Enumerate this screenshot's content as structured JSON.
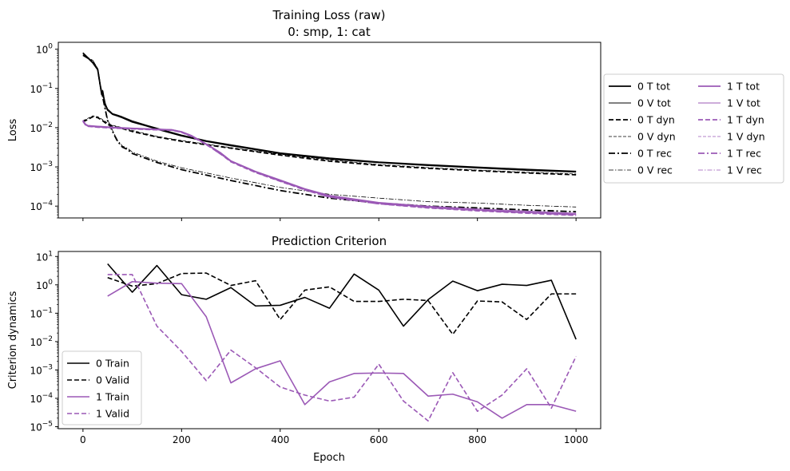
{
  "colors": {
    "black": "#000000",
    "purple": "#9b59b6"
  },
  "chart_data": [
    {
      "type": "line",
      "title": "Training Loss (raw)",
      "subtitle": "0: smp, 1: cat",
      "xlabel": "",
      "ylabel": "Loss",
      "yscale": "log",
      "xlim": [
        -50,
        1050
      ],
      "ylim": [
        5e-05,
        1.5
      ],
      "x_ticks": [
        0,
        200,
        400,
        600,
        800,
        1000
      ],
      "x_tick_labels_shown": false,
      "y_ticks": [
        {
          "value": 0.0001,
          "base": "10",
          "exp": "−4"
        },
        {
          "value": 0.001,
          "base": "10",
          "exp": "−3"
        },
        {
          "value": 0.01,
          "base": "10",
          "exp": "−2"
        },
        {
          "value": 0.1,
          "base": "10",
          "exp": "−1"
        },
        {
          "value": 1,
          "base": "10",
          "exp": "0"
        }
      ],
      "legend_placement": "outside-right",
      "series": [
        {
          "name": "0 T tot",
          "color": "#000000",
          "style": "solid",
          "width": 1.8,
          "x": [
            0,
            10,
            20,
            30,
            35,
            38,
            40,
            42,
            45,
            50,
            60,
            70,
            80,
            100,
            130,
            160,
            200,
            250,
            300,
            400,
            500,
            600,
            700,
            800,
            900,
            1000
          ],
          "y": [
            0.8,
            0.6,
            0.45,
            0.3,
            0.12,
            0.07,
            0.085,
            0.06,
            0.04,
            0.028,
            0.022,
            0.02,
            0.018,
            0.014,
            0.011,
            0.0085,
            0.0062,
            0.0045,
            0.0035,
            0.0022,
            0.0016,
            0.0013,
            0.0011,
            0.00095,
            0.00083,
            0.00075
          ]
        },
        {
          "name": "0 V tot",
          "color": "#000000",
          "style": "solid",
          "width": 0.9,
          "x": [
            0,
            10,
            20,
            30,
            35,
            38,
            40,
            42,
            45,
            50,
            60,
            70,
            80,
            100,
            130,
            160,
            200,
            250,
            300,
            400,
            500,
            600,
            700,
            800,
            900,
            1000
          ],
          "y": [
            0.82,
            0.62,
            0.47,
            0.32,
            0.13,
            0.075,
            0.09,
            0.065,
            0.042,
            0.03,
            0.023,
            0.021,
            0.019,
            0.015,
            0.0115,
            0.009,
            0.0065,
            0.0047,
            0.0037,
            0.0023,
            0.0017,
            0.00135,
            0.00115,
            0.001,
            0.00088,
            0.00078
          ]
        },
        {
          "name": "0 T dyn",
          "color": "#000000",
          "style": "dashed",
          "width": 1.8,
          "x": [
            0,
            20,
            30,
            40,
            50,
            60,
            80,
            100,
            150,
            200,
            300,
            400,
            500,
            600,
            700,
            800,
            900,
            1000
          ],
          "y": [
            0.014,
            0.019,
            0.018,
            0.015,
            0.012,
            0.011,
            0.0095,
            0.008,
            0.0058,
            0.0045,
            0.003,
            0.002,
            0.0014,
            0.0011,
            0.00092,
            0.0008,
            0.0007,
            0.00063
          ]
        },
        {
          "name": "0 V dyn",
          "color": "#000000",
          "style": "dashed",
          "width": 0.8,
          "x": [
            0,
            20,
            30,
            40,
            50,
            60,
            80,
            100,
            150,
            200,
            300,
            400,
            500,
            600,
            700,
            800,
            900,
            1000
          ],
          "y": [
            0.015,
            0.02,
            0.019,
            0.016,
            0.013,
            0.0115,
            0.01,
            0.0085,
            0.006,
            0.0047,
            0.0031,
            0.0021,
            0.0015,
            0.00115,
            0.00096,
            0.00083,
            0.00073,
            0.00066
          ]
        },
        {
          "name": "0 T rec",
          "color": "#000000",
          "style": "dashdot",
          "width": 1.8,
          "x": [
            0,
            20,
            30,
            35,
            40,
            45,
            50,
            60,
            70,
            80,
            90,
            100,
            150,
            200,
            300,
            400,
            500,
            600,
            700,
            800,
            900,
            1000
          ],
          "y": [
            0.7,
            0.5,
            0.3,
            0.12,
            0.06,
            0.03,
            0.015,
            0.008,
            0.0045,
            0.0032,
            0.0028,
            0.0022,
            0.0013,
            0.00085,
            0.00045,
            0.00025,
            0.00016,
            0.00012,
            0.0001,
            9e-05,
            8e-05,
            7.2e-05
          ]
        },
        {
          "name": "0 V rec",
          "color": "#000000",
          "style": "dashdot",
          "width": 0.8,
          "x": [
            0,
            20,
            30,
            35,
            40,
            45,
            50,
            60,
            70,
            80,
            90,
            100,
            150,
            200,
            300,
            400,
            500,
            600,
            700,
            800,
            900,
            1000
          ],
          "y": [
            0.72,
            0.52,
            0.32,
            0.13,
            0.065,
            0.032,
            0.016,
            0.0085,
            0.0048,
            0.0034,
            0.003,
            0.0024,
            0.0014,
            0.00095,
            0.00052,
            0.0003,
            0.0002,
            0.00016,
            0.00013,
            0.00012,
            0.000105,
            9.5e-05
          ]
        },
        {
          "name": "1 T tot",
          "color": "#9b59b6",
          "style": "solid",
          "width": 1.8,
          "x": [
            0,
            5,
            10,
            30,
            60,
            100,
            150,
            180,
            200,
            220,
            240,
            260,
            280,
            300,
            350,
            400,
            450,
            500,
            600,
            700,
            800,
            900,
            1000
          ],
          "y": [
            0.015,
            0.012,
            0.011,
            0.0105,
            0.01,
            0.0095,
            0.009,
            0.0088,
            0.0078,
            0.0062,
            0.0045,
            0.0032,
            0.0022,
            0.0014,
            0.00075,
            0.00045,
            0.00027,
            0.00018,
            0.00012,
            9.5e-05,
            8e-05,
            7e-05,
            6.2e-05
          ]
        },
        {
          "name": "1 V tot",
          "color": "#9b59b6",
          "style": "solid",
          "width": 0.9,
          "x": [
            0,
            5,
            10,
            30,
            60,
            100,
            150,
            180,
            200,
            220,
            240,
            260,
            280,
            300,
            350,
            400,
            450,
            500,
            600,
            700,
            800,
            900,
            1000
          ],
          "y": [
            0.0155,
            0.0125,
            0.0115,
            0.011,
            0.0104,
            0.0098,
            0.0093,
            0.009,
            0.008,
            0.0064,
            0.0046,
            0.0033,
            0.0023,
            0.00145,
            0.00078,
            0.00047,
            0.00028,
            0.00019,
            0.000125,
            0.0001,
            8.5e-05,
            7.5e-05,
            6.6e-05
          ]
        },
        {
          "name": "1 T dyn",
          "color": "#9b59b6",
          "style": "dashed",
          "width": 1.8,
          "x": [
            0,
            5,
            10,
            30,
            60,
            100,
            150,
            180,
            200,
            220,
            240,
            260,
            280,
            300,
            350,
            400,
            450,
            500,
            600,
            700,
            800,
            900,
            1000
          ],
          "y": [
            0.0145,
            0.0118,
            0.0108,
            0.0103,
            0.0098,
            0.0093,
            0.0088,
            0.0086,
            0.0076,
            0.006,
            0.0044,
            0.0031,
            0.0021,
            0.00135,
            0.00072,
            0.00043,
            0.00026,
            0.00017,
            0.000115,
            9e-05,
            7.6e-05,
            6.6e-05,
            5.8e-05
          ]
        },
        {
          "name": "1 V dyn",
          "color": "#9b59b6",
          "style": "dashed",
          "width": 0.8,
          "x": [
            0,
            5,
            10,
            30,
            60,
            100,
            150,
            180,
            200,
            220,
            240,
            260,
            280,
            300,
            350,
            400,
            450,
            500,
            600,
            700,
            800,
            900,
            1000
          ],
          "y": [
            0.015,
            0.0122,
            0.0112,
            0.0106,
            0.0101,
            0.0096,
            0.0091,
            0.0089,
            0.0079,
            0.0063,
            0.0046,
            0.0032,
            0.0022,
            0.0014,
            0.00074,
            0.00044,
            0.000265,
            0.000175,
            0.00012,
            9.3e-05,
            7.9e-05,
            6.9e-05,
            6.1e-05
          ]
        },
        {
          "name": "1 T rec",
          "color": "#9b59b6",
          "style": "dashdot",
          "width": 1.8,
          "x": [
            0,
            5,
            10,
            30,
            60,
            100,
            150,
            180,
            200,
            220,
            240,
            260,
            280,
            300,
            350,
            400,
            450,
            500,
            600,
            700,
            800,
            900,
            1000
          ],
          "y": [
            0.0152,
            0.0121,
            0.0111,
            0.0106,
            0.01,
            0.0095,
            0.009,
            0.0087,
            0.0077,
            0.0061,
            0.0045,
            0.0031,
            0.0021,
            0.0014,
            0.00073,
            0.00044,
            0.00026,
            0.00017,
            0.000115,
            9.2e-05,
            7.8e-05,
            6.8e-05,
            6e-05
          ]
        },
        {
          "name": "1 V rec",
          "color": "#9b59b6",
          "style": "dashdot",
          "width": 0.8,
          "x": [
            0,
            5,
            10,
            30,
            60,
            100,
            150,
            180,
            200,
            220,
            240,
            260,
            280,
            300,
            350,
            400,
            450,
            500,
            600,
            700,
            800,
            900,
            1000
          ],
          "y": [
            0.0156,
            0.0124,
            0.0114,
            0.0108,
            0.0103,
            0.0097,
            0.0092,
            0.0089,
            0.0079,
            0.0063,
            0.0046,
            0.0032,
            0.0022,
            0.00143,
            0.00076,
            0.00046,
            0.00027,
            0.00018,
            0.00012,
            9.6e-05,
            8.1e-05,
            7.1e-05,
            6.3e-05
          ]
        }
      ]
    },
    {
      "type": "line",
      "title": "Prediction Criterion",
      "xlabel": "Epoch",
      "ylabel": "Criterion dynamics",
      "yscale": "log",
      "xlim": [
        -50,
        1050
      ],
      "ylim": [
        8.5e-06,
        15
      ],
      "x_ticks": [
        0,
        200,
        400,
        600,
        800,
        1000
      ],
      "x_tick_labels": [
        "0",
        "200",
        "400",
        "600",
        "800",
        "1000"
      ],
      "y_ticks": [
        {
          "value": 1e-05,
          "base": "10",
          "exp": "−5"
        },
        {
          "value": 0.0001,
          "base": "10",
          "exp": "−4"
        },
        {
          "value": 0.001,
          "base": "10",
          "exp": "−3"
        },
        {
          "value": 0.01,
          "base": "10",
          "exp": "−2"
        },
        {
          "value": 0.1,
          "base": "10",
          "exp": "−1"
        },
        {
          "value": 1,
          "base": "10",
          "exp": "0"
        },
        {
          "value": 10,
          "base": "10",
          "exp": "1"
        }
      ],
      "legend_placement": "lower-left",
      "series": [
        {
          "name": "0 Train",
          "color": "#000000",
          "style": "solid",
          "width": 1.6,
          "x": [
            50,
            100,
            150,
            200,
            250,
            300,
            350,
            400,
            450,
            500,
            550,
            600,
            650,
            700,
            750,
            800,
            850,
            900,
            950,
            1000
          ],
          "y": [
            5.5,
            0.55,
            4.8,
            0.45,
            0.31,
            0.8,
            0.18,
            0.19,
            0.36,
            0.15,
            2.4,
            0.65,
            0.035,
            0.3,
            1.35,
            0.62,
            1.05,
            0.95,
            1.45,
            0.012
          ]
        },
        {
          "name": "0 Valid",
          "color": "#000000",
          "style": "dashed",
          "width": 1.6,
          "x": [
            50,
            100,
            150,
            200,
            250,
            300,
            350,
            400,
            450,
            500,
            550,
            600,
            650,
            700,
            750,
            800,
            850,
            900,
            950,
            1000
          ],
          "y": [
            1.8,
            0.9,
            1.1,
            2.5,
            2.6,
            0.95,
            1.4,
            0.06,
            0.65,
            0.85,
            0.26,
            0.26,
            0.31,
            0.28,
            0.018,
            0.27,
            0.25,
            0.06,
            0.48,
            0.48
          ]
        },
        {
          "name": "1 Train",
          "color": "#9b59b6",
          "style": "solid",
          "width": 1.6,
          "x": [
            50,
            100,
            150,
            200,
            250,
            300,
            350,
            400,
            450,
            500,
            550,
            600,
            650,
            700,
            750,
            800,
            850,
            900,
            950,
            1000
          ],
          "y": [
            0.4,
            1.3,
            1.15,
            1.1,
            0.075,
            0.00035,
            0.0011,
            0.0021,
            6e-05,
            0.00038,
            0.00075,
            0.00078,
            0.00075,
            0.00012,
            0.00014,
            7.5e-05,
            2e-05,
            6e-05,
            6e-05,
            3.5e-05
          ]
        },
        {
          "name": "1 Valid",
          "color": "#9b59b6",
          "style": "dashed",
          "width": 1.6,
          "x": [
            50,
            100,
            150,
            200,
            250,
            300,
            350,
            400,
            450,
            500,
            550,
            600,
            650,
            700,
            750,
            800,
            850,
            900,
            950,
            1000
          ],
          "y": [
            2.3,
            2.3,
            0.035,
            0.0045,
            0.00042,
            0.005,
            0.0012,
            0.00025,
            0.00013,
            8e-05,
            0.00011,
            0.0016,
            8e-05,
            1.6e-05,
            0.0008,
            3.5e-05,
            0.00013,
            0.0011,
            4.5e-05,
            0.003
          ]
        }
      ]
    }
  ]
}
